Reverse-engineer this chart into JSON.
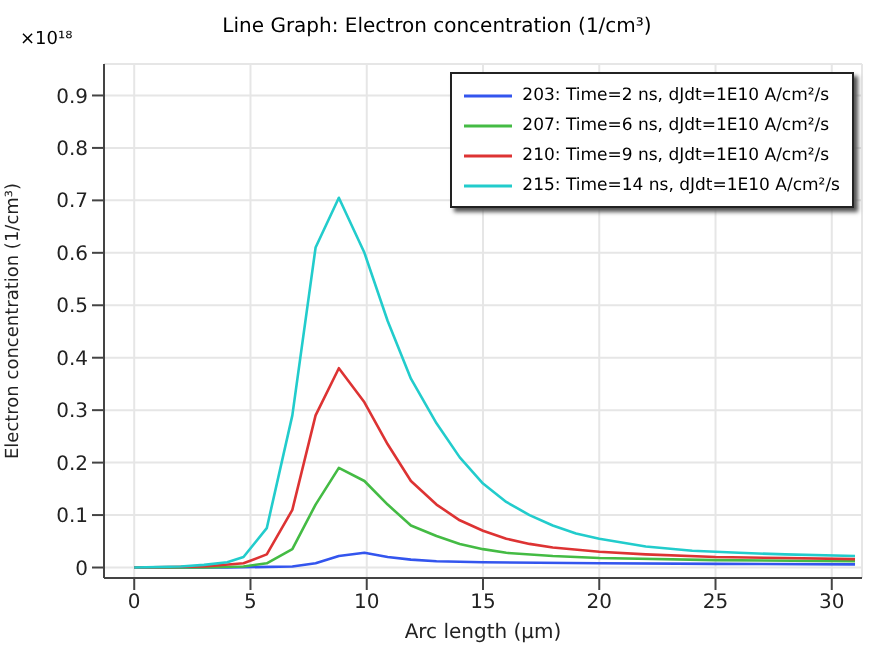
{
  "chart_data": {
    "type": "line",
    "title": "Line Graph: Electron concentration (1/cm³)",
    "xlabel": "Arc length (µm)",
    "ylabel": "Electron concentration (1/cm³)",
    "annotations": [
      "×10¹⁸"
    ],
    "xlim": [
      -1.3,
      31.3
    ],
    "xticks": [
      0,
      5,
      10,
      15,
      20,
      25,
      30
    ],
    "ylim": [
      -0.02,
      0.96
    ],
    "yticks": [
      0,
      0.1,
      0.2,
      0.3,
      0.4,
      0.5,
      0.6,
      0.7,
      0.8,
      0.9
    ],
    "grid": true,
    "legend": "top right",
    "marker": "none",
    "line_style": "solid",
    "series": [
      {
        "name": "203: Time=2 ns, dJdt=1E10 A/cm²/s",
        "color": "#3355ee",
        "x": [
          0,
          4,
          6.8,
          7.8,
          8.8,
          9.9,
          10.9,
          11.9,
          13,
          15,
          20,
          25,
          31
        ],
        "values": [
          0,
          0,
          0.002,
          0.008,
          0.022,
          0.028,
          0.02,
          0.015,
          0.012,
          0.01,
          0.008,
          0.007,
          0.006
        ]
      },
      {
        "name": "207: Time=6 ns, dJdt=1E10 A/cm²/s",
        "color": "#44bb44",
        "x": [
          0,
          3,
          4.7,
          5.7,
          6.8,
          7.8,
          8.8,
          9.9,
          10.9,
          11.9,
          13,
          14,
          15,
          16,
          18,
          20,
          25,
          31
        ],
        "values": [
          0,
          0,
          0.002,
          0.008,
          0.035,
          0.12,
          0.19,
          0.165,
          0.12,
          0.08,
          0.06,
          0.045,
          0.035,
          0.028,
          0.022,
          0.018,
          0.014,
          0.012
        ]
      },
      {
        "name": "210: Time=9 ns, dJdt=1E10 A/cm²/s",
        "color": "#dd3333",
        "x": [
          0,
          3,
          4.7,
          5.7,
          6.8,
          7.8,
          8.8,
          9.9,
          10.9,
          11.9,
          13,
          14,
          15,
          16,
          17,
          18,
          20,
          22,
          25,
          28,
          31
        ],
        "values": [
          0,
          0.002,
          0.008,
          0.025,
          0.11,
          0.29,
          0.38,
          0.315,
          0.235,
          0.165,
          0.12,
          0.09,
          0.07,
          0.055,
          0.045,
          0.038,
          0.03,
          0.025,
          0.02,
          0.018,
          0.016
        ]
      },
      {
        "name": "215: Time=14 ns, dJdt=1E10 A/cm²/s",
        "color": "#22cccc",
        "x": [
          0,
          2,
          3,
          4,
          4.7,
          5.7,
          6.8,
          7.8,
          8.8,
          9.9,
          10.9,
          11.9,
          13,
          14,
          15,
          16,
          17,
          18,
          19,
          20,
          22,
          24,
          26,
          28,
          31
        ],
        "values": [
          0,
          0.002,
          0.005,
          0.01,
          0.02,
          0.075,
          0.29,
          0.61,
          0.705,
          0.6,
          0.47,
          0.36,
          0.275,
          0.21,
          0.16,
          0.125,
          0.1,
          0.08,
          0.065,
          0.055,
          0.04,
          0.032,
          0.028,
          0.025,
          0.022
        ]
      }
    ]
  }
}
